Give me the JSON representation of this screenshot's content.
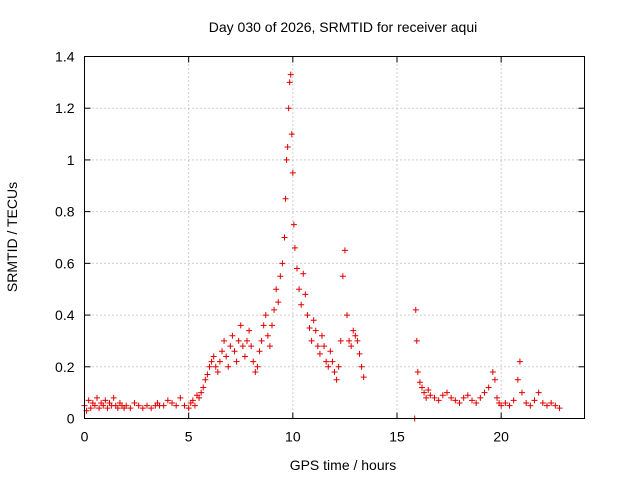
{
  "chart_data": {
    "type": "scatter",
    "title": "Day 030 of 2026, SRMTID for receiver aqui",
    "xlabel": "GPS time / hours",
    "ylabel": "SRMTID / TECUs",
    "xlim": [
      0,
      24
    ],
    "ylim": [
      0,
      1.4
    ],
    "xticks": [
      0,
      5,
      10,
      15,
      20
    ],
    "yticks": [
      0,
      0.2,
      0.4,
      0.6,
      0.8,
      1,
      1.2,
      1.4
    ],
    "xtick_labels": [
      "0",
      "5",
      "10",
      "15",
      "20"
    ],
    "ytick_labels": [
      "0",
      "0.2",
      "0.4",
      "0.6",
      "0.8",
      "1",
      "1.2",
      "1.4"
    ],
    "grid": true,
    "marker": "plus",
    "color": "#e00000",
    "series": [
      {
        "name": "SRMTID",
        "x": [
          0.0,
          0.1,
          0.2,
          0.3,
          0.4,
          0.5,
          0.6,
          0.7,
          0.8,
          0.9,
          1.0,
          1.1,
          1.2,
          1.3,
          1.4,
          1.5,
          1.6,
          1.7,
          1.8,
          1.9,
          2.0,
          2.2,
          2.4,
          2.6,
          2.8,
          3.0,
          3.2,
          3.4,
          3.5,
          3.6,
          3.8,
          4.0,
          4.2,
          4.4,
          4.6,
          4.8,
          5.0,
          5.1,
          5.2,
          5.3,
          5.4,
          5.5,
          5.6,
          5.7,
          5.8,
          5.9,
          6.0,
          6.1,
          6.2,
          6.3,
          6.4,
          6.5,
          6.6,
          6.7,
          6.8,
          6.9,
          7.0,
          7.1,
          7.2,
          7.3,
          7.4,
          7.5,
          7.6,
          7.7,
          7.8,
          7.9,
          8.0,
          8.1,
          8.2,
          8.3,
          8.4,
          8.5,
          8.6,
          8.7,
          8.8,
          8.9,
          9.0,
          9.1,
          9.2,
          9.3,
          9.4,
          9.5,
          9.6,
          9.65,
          9.7,
          9.75,
          9.8,
          9.85,
          9.9,
          9.95,
          10.0,
          10.05,
          10.1,
          10.2,
          10.3,
          10.4,
          10.5,
          10.6,
          10.7,
          10.8,
          10.9,
          11.0,
          11.1,
          11.2,
          11.3,
          11.4,
          11.5,
          11.6,
          11.7,
          11.8,
          11.9,
          12.0,
          12.1,
          12.2,
          12.3,
          12.4,
          12.5,
          12.6,
          12.7,
          12.8,
          12.9,
          13.0,
          13.1,
          13.2,
          13.3,
          13.4,
          15.85,
          15.9,
          15.95,
          16.0,
          16.1,
          16.2,
          16.3,
          16.4,
          16.5,
          16.6,
          16.8,
          17.0,
          17.2,
          17.4,
          17.6,
          17.8,
          18.0,
          18.2,
          18.4,
          18.6,
          18.8,
          19.0,
          19.2,
          19.4,
          19.6,
          19.7,
          19.8,
          19.9,
          20.0,
          20.2,
          20.4,
          20.6,
          20.8,
          20.9,
          21.0,
          21.2,
          21.4,
          21.6,
          21.8,
          22.0,
          22.2,
          22.4,
          22.6,
          22.8
        ],
        "y": [
          0.05,
          0.03,
          0.07,
          0.04,
          0.06,
          0.05,
          0.08,
          0.04,
          0.06,
          0.05,
          0.07,
          0.04,
          0.06,
          0.05,
          0.08,
          0.05,
          0.04,
          0.06,
          0.05,
          0.04,
          0.05,
          0.04,
          0.06,
          0.05,
          0.04,
          0.05,
          0.04,
          0.05,
          0.06,
          0.05,
          0.05,
          0.07,
          0.06,
          0.05,
          0.08,
          0.05,
          0.04,
          0.06,
          0.07,
          0.05,
          0.09,
          0.08,
          0.1,
          0.12,
          0.15,
          0.17,
          0.2,
          0.22,
          0.24,
          0.2,
          0.18,
          0.22,
          0.26,
          0.3,
          0.24,
          0.2,
          0.28,
          0.32,
          0.26,
          0.22,
          0.3,
          0.36,
          0.28,
          0.24,
          0.3,
          0.34,
          0.28,
          0.22,
          0.18,
          0.2,
          0.26,
          0.3,
          0.36,
          0.4,
          0.32,
          0.28,
          0.36,
          0.42,
          0.5,
          0.45,
          0.55,
          0.6,
          0.7,
          0.85,
          1.0,
          1.05,
          1.2,
          1.3,
          1.33,
          1.1,
          0.95,
          0.75,
          0.66,
          0.58,
          0.5,
          0.44,
          0.56,
          0.48,
          0.4,
          0.35,
          0.3,
          0.38,
          0.34,
          0.28,
          0.25,
          0.32,
          0.28,
          0.22,
          0.2,
          0.26,
          0.22,
          0.18,
          0.15,
          0.2,
          0.3,
          0.55,
          0.65,
          0.4,
          0.3,
          0.28,
          0.34,
          0.32,
          0.3,
          0.25,
          0.2,
          0.16,
          0.0,
          0.42,
          0.3,
          0.18,
          0.14,
          0.12,
          0.1,
          0.08,
          0.11,
          0.09,
          0.08,
          0.07,
          0.09,
          0.1,
          0.08,
          0.07,
          0.06,
          0.08,
          0.09,
          0.07,
          0.06,
          0.08,
          0.1,
          0.12,
          0.18,
          0.15,
          0.08,
          0.06,
          0.05,
          0.06,
          0.05,
          0.07,
          0.15,
          0.22,
          0.1,
          0.06,
          0.05,
          0.07,
          0.1,
          0.06,
          0.05,
          0.06,
          0.05,
          0.04
        ]
      }
    ]
  }
}
